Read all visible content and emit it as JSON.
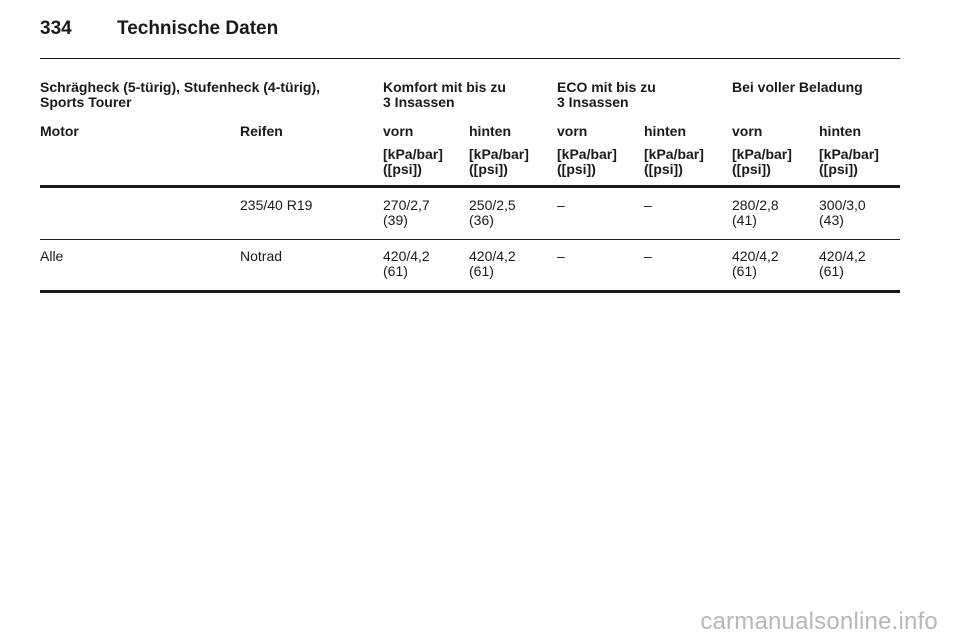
{
  "header": {
    "page_number": "334",
    "title": "Technische Daten"
  },
  "table": {
    "group_headers": [
      {
        "line1": "Schrägheck (5-türig), Stufenheck (4-türig),",
        "line2": "Sports Tourer"
      },
      {
        "line1": "Komfort mit bis zu",
        "line2": "3 Insassen"
      },
      {
        "line1": "ECO mit bis zu",
        "line2": "3 Insassen"
      },
      {
        "line1": "Bei voller Beladung",
        "line2": ""
      }
    ],
    "column_headers": [
      "Motor",
      "Reifen",
      "vorn",
      "hinten",
      "vorn",
      "hinten",
      "vorn",
      "hinten"
    ],
    "unit_line1": "[kPa/bar]",
    "unit_line2": "([psi])",
    "rows": [
      {
        "motor": "",
        "tire": "235/40 R19",
        "values": [
          {
            "a": "270/2,7",
            "b": "(39)"
          },
          {
            "a": "250/2,5",
            "b": "(36)"
          },
          {
            "a": "–",
            "b": ""
          },
          {
            "a": "–",
            "b": ""
          },
          {
            "a": "280/2,8",
            "b": "(41)"
          },
          {
            "a": "300/3,0",
            "b": "(43)"
          }
        ]
      },
      {
        "motor": "Alle",
        "tire": "Notrad",
        "values": [
          {
            "a": "420/4,2",
            "b": "(61)"
          },
          {
            "a": "420/4,2",
            "b": "(61)"
          },
          {
            "a": "–",
            "b": ""
          },
          {
            "a": "–",
            "b": ""
          },
          {
            "a": "420/4,2",
            "b": "(61)"
          },
          {
            "a": "420/4,2",
            "b": "(61)"
          }
        ]
      }
    ]
  },
  "watermark": "carmanualsonline.info"
}
